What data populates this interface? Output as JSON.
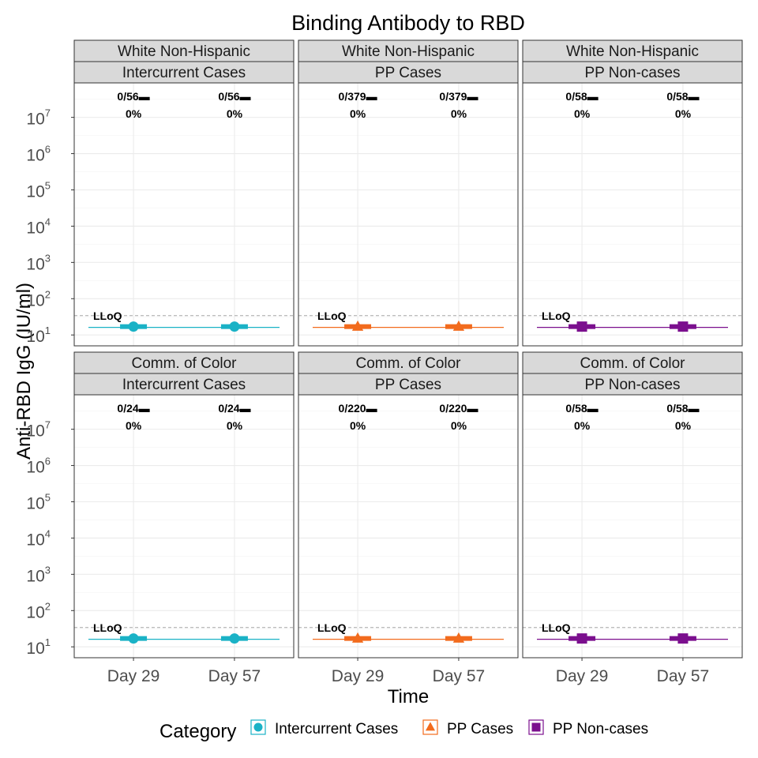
{
  "chart_data": {
    "type": "scatter",
    "title": "Binding Antibody to RBD",
    "xlabel": "Time",
    "ylabel": "Anti-RBD IgG (IU/ml)",
    "y_scale": "log10",
    "y_tick_labels": [
      "10^1",
      "10^2",
      "10^3",
      "10^4",
      "10^5",
      "10^6",
      "10^7"
    ],
    "x_categories": [
      "Day 29",
      "Day 57"
    ],
    "lloq_label": "LLoQ",
    "lloq_value": 34,
    "grid": true,
    "legend": {
      "title": "Category",
      "position": "bottom",
      "items": [
        {
          "label": "Intercurrent Cases",
          "color": "#1ab2c6",
          "shape": "circle"
        },
        {
          "label": "PP Cases",
          "color": "#f26b1d",
          "shape": "triangle"
        },
        {
          "label": "PP Non-cases",
          "color": "#7b0f8e",
          "shape": "square"
        }
      ]
    },
    "panels": [
      {
        "row_strip": "White Non-Hispanic",
        "col_strip": "Intercurrent Cases",
        "category": "Intercurrent Cases",
        "points": [
          {
            "x": "Day 29",
            "y": 17,
            "count": "0/56",
            "pct": "0%"
          },
          {
            "x": "Day 57",
            "y": 17,
            "count": "0/56",
            "pct": "0%"
          }
        ]
      },
      {
        "row_strip": "White Non-Hispanic",
        "col_strip": "PP Cases",
        "category": "PP Cases",
        "points": [
          {
            "x": "Day 29",
            "y": 17,
            "count": "0/379",
            "pct": "0%"
          },
          {
            "x": "Day 57",
            "y": 17,
            "count": "0/379",
            "pct": "0%"
          }
        ]
      },
      {
        "row_strip": "White Non-Hispanic",
        "col_strip": "PP Non-cases",
        "category": "PP Non-cases",
        "points": [
          {
            "x": "Day 29",
            "y": 17,
            "count": "0/58",
            "pct": "0%"
          },
          {
            "x": "Day 57",
            "y": 17,
            "count": "0/58",
            "pct": "0%"
          }
        ]
      },
      {
        "row_strip": "Comm. of Color",
        "col_strip": "Intercurrent Cases",
        "category": "Intercurrent Cases",
        "points": [
          {
            "x": "Day 29",
            "y": 17,
            "count": "0/24",
            "pct": "0%"
          },
          {
            "x": "Day 57",
            "y": 17,
            "count": "0/24",
            "pct": "0%"
          }
        ]
      },
      {
        "row_strip": "Comm. of Color",
        "col_strip": "PP Cases",
        "category": "PP Cases",
        "points": [
          {
            "x": "Day 29",
            "y": 17,
            "count": "0/220",
            "pct": "0%"
          },
          {
            "x": "Day 57",
            "y": 17,
            "count": "0/220",
            "pct": "0%"
          }
        ]
      },
      {
        "row_strip": "Comm. of Color",
        "col_strip": "PP Non-cases",
        "category": "PP Non-cases",
        "points": [
          {
            "x": "Day 29",
            "y": 17,
            "count": "0/58",
            "pct": "0%"
          },
          {
            "x": "Day 57",
            "y": 17,
            "count": "0/58",
            "pct": "0%"
          }
        ]
      }
    ]
  }
}
